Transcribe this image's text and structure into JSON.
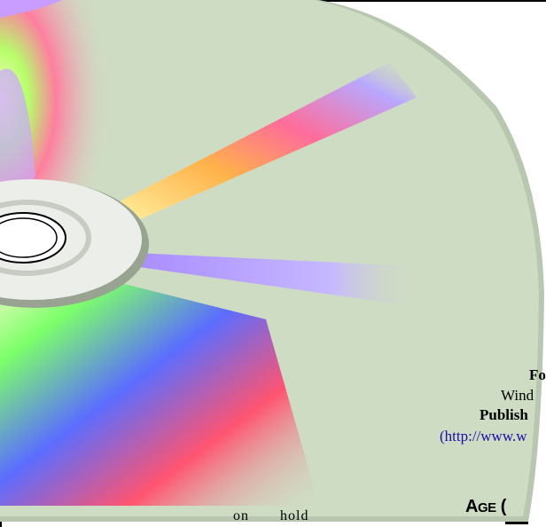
{
  "text": {
    "for": "Fo",
    "windows": "Wind",
    "publisher": "Publish",
    "url": "(http://www.w",
    "age_initial": "A",
    "age_rest": "GE",
    "age_trailing": " (",
    "on_hold": "on hold"
  },
  "colors": {
    "disc_base": "#cfdcc4",
    "hub": "#eceeea",
    "hub_ring": "#c7cbc2",
    "link": "#1a0dab"
  }
}
